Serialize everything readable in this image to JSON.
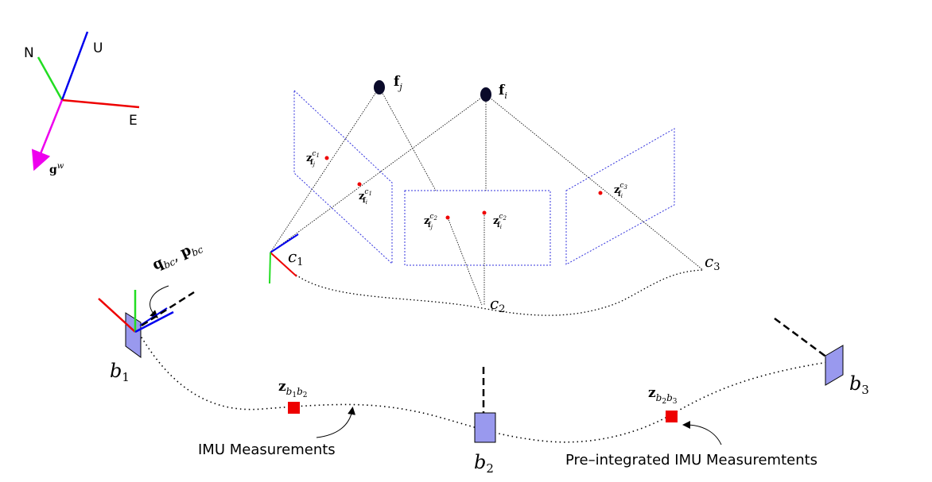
{
  "world_frame": {
    "north_label": "N",
    "up_label": "U",
    "east_label": "E",
    "gravity_label": "g",
    "gravity_sup": "w",
    "colors": {
      "north": "#22dd22",
      "up": "#0000ee",
      "east": "#ee0000",
      "gravity": "#ee00ee"
    }
  },
  "features": {
    "fj_label": "f",
    "fj_sub": "j",
    "fi_label": "f",
    "fi_sub": "i"
  },
  "cameras": {
    "c1_label": "c",
    "c1_sub": "1",
    "c2_label": "c",
    "c2_sub": "2",
    "c3_label": "c",
    "c3_sub": "3"
  },
  "observations": [
    {
      "base": "z",
      "sub": "f",
      "sub2": "j",
      "sup": "c",
      "sup2": "1"
    },
    {
      "base": "z",
      "sub": "f",
      "sub2": "i",
      "sup": "c",
      "sup2": "1"
    },
    {
      "base": "z",
      "sub": "f",
      "sub2": "j",
      "sup": "c",
      "sup2": "2"
    },
    {
      "base": "z",
      "sub": "f",
      "sub2": "i",
      "sup": "c",
      "sup2": "2"
    },
    {
      "base": "z",
      "sub": "f",
      "sub2": "i",
      "sup": "c",
      "sup2": "3"
    }
  ],
  "extrinsics": {
    "q": "q",
    "q_sub": "bc",
    "sep": ", ",
    "p": "p",
    "p_sub": "bc"
  },
  "bodies": {
    "b1_label": "b",
    "b1_sub": "1",
    "b2_label": "b",
    "b2_sub": "2",
    "b3_label": "b",
    "b3_sub": "3"
  },
  "preintegration": {
    "z12": "z",
    "z12_sub": "b",
    "z12_sub_a": "1",
    "z12_sub_b": "b",
    "z12_sub_c": "2",
    "z23": "z",
    "z23_sub": "b",
    "z23_sub_a": "2",
    "z23_sub_b": "b",
    "z23_sub_c": "3"
  },
  "annotations": {
    "imu_measurements": "IMU Measurements",
    "preintegrated": "Pre–integrated IMU Measuremtents"
  },
  "colors": {
    "image_plane": "#3333dd",
    "observation_dot": "#ee0000",
    "body_fill": "#9999ee",
    "preint_box": "#ee0000"
  }
}
